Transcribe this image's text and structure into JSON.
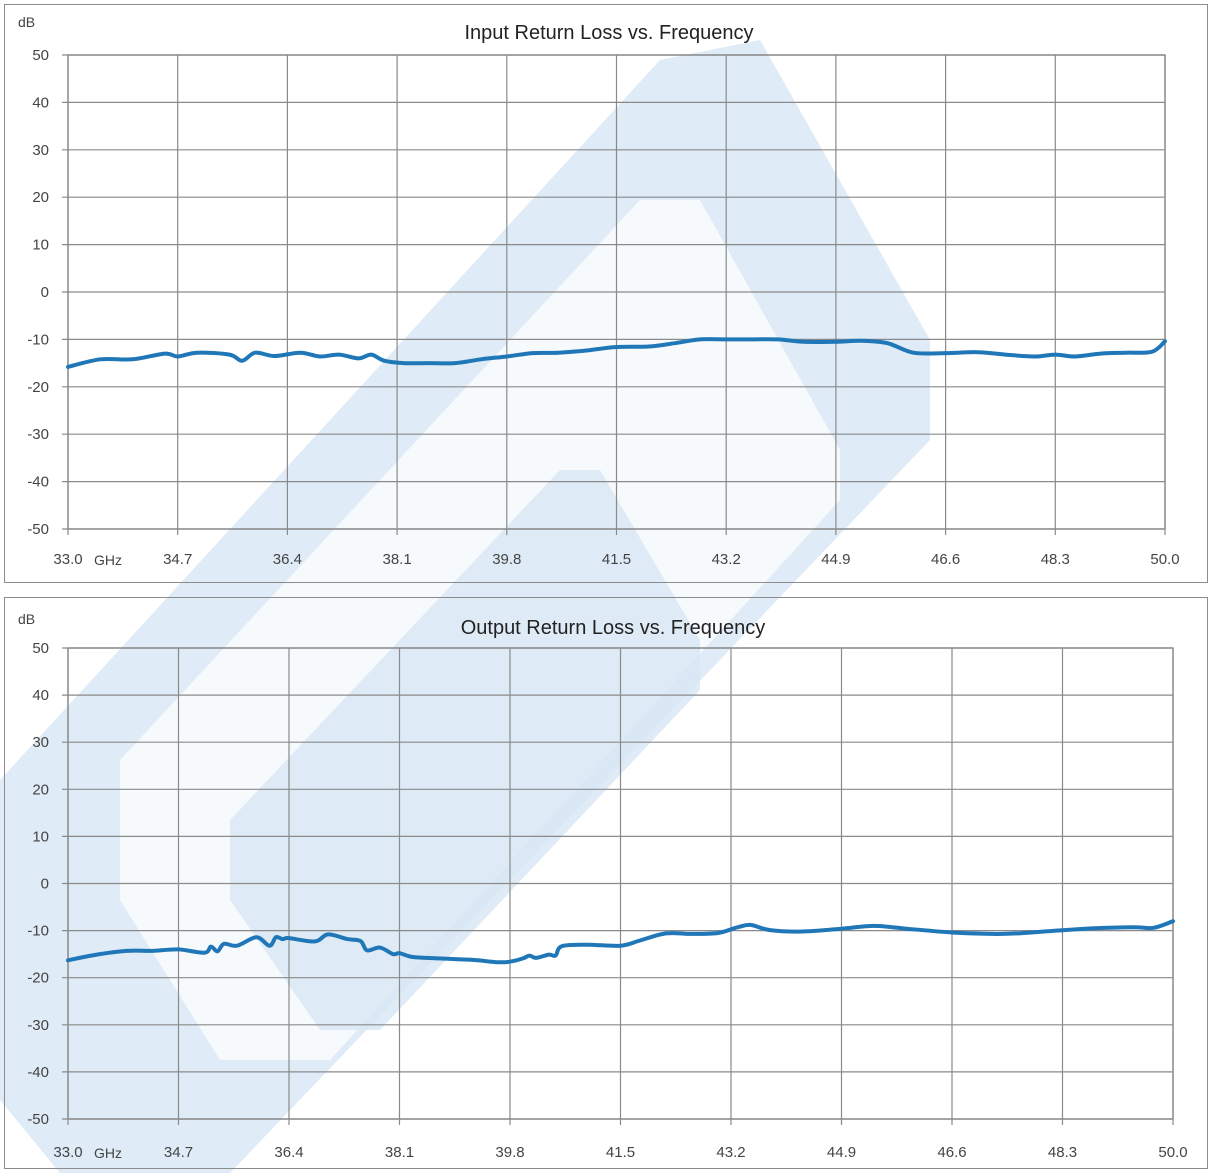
{
  "colors": {
    "series": "#1f77b8",
    "grid": "#8a8a8a",
    "watermark": "#d9e8f5"
  },
  "chart_data": [
    {
      "type": "line",
      "title": "Input Return Loss vs. Frequency",
      "ylabel": "dB",
      "xlabel": "",
      "x_unit_label": "GHz",
      "grid": true,
      "xlim": [
        33.0,
        50.0
      ],
      "ylim": [
        -50,
        50
      ],
      "x_ticks": [
        "33.0",
        "34.7",
        "36.4",
        "38.1",
        "39.8",
        "41.5",
        "43.2",
        "44.9",
        "46.6",
        "48.3",
        "50.0"
      ],
      "y_ticks": [
        "50",
        "40",
        "30",
        "20",
        "10",
        "0",
        "-10",
        "-20",
        "-30",
        "-40",
        "-50"
      ],
      "series": [
        {
          "x": [
            33.0,
            33.5,
            34.0,
            34.5,
            34.7,
            35.0,
            35.5,
            35.7,
            35.9,
            36.2,
            36.6,
            36.9,
            37.2,
            37.5,
            37.7,
            37.9,
            38.2,
            38.6,
            39.0,
            39.4,
            39.8,
            40.2,
            40.6,
            41.0,
            41.5,
            42.0,
            42.4,
            42.8,
            43.2,
            43.6,
            44.0,
            44.4,
            44.9,
            45.3,
            45.7,
            46.1,
            46.6,
            47.1,
            47.6,
            48.0,
            48.3,
            48.6,
            49.0,
            49.4,
            49.8,
            50.0
          ],
          "y": [
            -15.8,
            -14.2,
            -14.2,
            -13.0,
            -13.6,
            -12.8,
            -13.2,
            -14.5,
            -12.8,
            -13.5,
            -12.8,
            -13.6,
            -13.2,
            -14.0,
            -13.2,
            -14.5,
            -15.0,
            -15.0,
            -15.0,
            -14.2,
            -13.6,
            -12.9,
            -12.8,
            -12.4,
            -11.6,
            -11.5,
            -10.8,
            -10.0,
            -10.0,
            -10.0,
            -10.0,
            -10.5,
            -10.5,
            -10.3,
            -10.8,
            -12.8,
            -12.9,
            -12.7,
            -13.3,
            -13.6,
            -13.2,
            -13.6,
            -13.0,
            -12.8,
            -12.6,
            -10.4
          ]
        }
      ]
    },
    {
      "type": "line",
      "title": "Output Return Loss vs. Frequency",
      "ylabel": "dB",
      "xlabel": "",
      "x_unit_label": "GHz",
      "grid": true,
      "xlim": [
        33.0,
        50.0
      ],
      "ylim": [
        -50,
        50
      ],
      "x_ticks": [
        "33.0",
        "34.7",
        "36.4",
        "38.1",
        "39.8",
        "41.5",
        "43.2",
        "44.9",
        "46.6",
        "48.3",
        "50.0"
      ],
      "y_ticks": [
        "50",
        "40",
        "30",
        "20",
        "10",
        "0",
        "-10",
        "-20",
        "-30",
        "-40",
        "-50"
      ],
      "series": [
        {
          "x": [
            33.0,
            33.4,
            33.9,
            34.3,
            34.7,
            35.1,
            35.2,
            35.3,
            35.4,
            35.6,
            35.9,
            36.1,
            36.2,
            36.3,
            36.4,
            36.8,
            37.0,
            37.3,
            37.5,
            37.6,
            37.8,
            38.0,
            38.1,
            38.3,
            38.7,
            39.2,
            39.6,
            39.8,
            40.0,
            40.1,
            40.2,
            40.4,
            40.5,
            40.6,
            41.0,
            41.5,
            41.8,
            42.2,
            42.6,
            43.0,
            43.3,
            43.5,
            43.8,
            44.3,
            44.9,
            45.4,
            45.9,
            46.6,
            47.2,
            47.6,
            48.2,
            48.8,
            49.4,
            49.7,
            50.0
          ],
          "y": [
            -16.3,
            -15.2,
            -14.3,
            -14.3,
            -14.0,
            -14.7,
            -13.4,
            -14.4,
            -12.8,
            -13.2,
            -11.4,
            -13.2,
            -11.4,
            -11.8,
            -11.6,
            -12.3,
            -10.8,
            -11.8,
            -12.2,
            -14.2,
            -13.6,
            -15.0,
            -14.8,
            -15.6,
            -15.9,
            -16.2,
            -16.7,
            -16.6,
            -15.9,
            -15.3,
            -15.8,
            -15.1,
            -15.3,
            -13.3,
            -13.0,
            -13.2,
            -12.1,
            -10.6,
            -10.7,
            -10.5,
            -9.3,
            -8.8,
            -9.9,
            -10.2,
            -9.6,
            -9.0,
            -9.6,
            -10.4,
            -10.7,
            -10.6,
            -10.0,
            -9.5,
            -9.3,
            -9.4,
            -8.0
          ]
        }
      ]
    }
  ]
}
